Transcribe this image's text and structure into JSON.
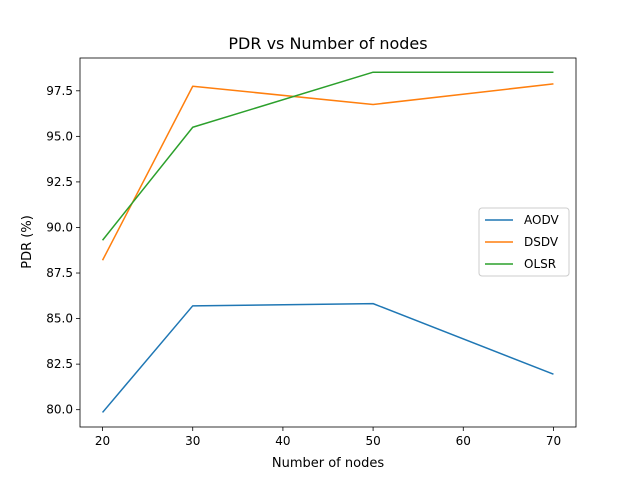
{
  "chart_data": {
    "type": "line",
    "title": "PDR vs Number of nodes",
    "xlabel": "Number of nodes",
    "ylabel": "PDR (%)",
    "x": [
      20,
      30,
      50,
      70
    ],
    "xlim": [
      17.5,
      72.5
    ],
    "ylim": [
      79.05,
      99.3
    ],
    "xticks": [
      20,
      30,
      40,
      50,
      60,
      70
    ],
    "yticks": [
      80.0,
      82.5,
      85.0,
      87.5,
      90.0,
      92.5,
      95.0,
      97.5
    ],
    "ytick_labels": [
      "80.0",
      "82.5",
      "85.0",
      "87.5",
      "90.0",
      "92.5",
      "95.0",
      "97.5"
    ],
    "grid": false,
    "legend_position": "center-right",
    "series": [
      {
        "name": "AODV",
        "color": "#1f77b4",
        "values": [
          79.85,
          85.7,
          85.82,
          81.95
        ]
      },
      {
        "name": "DSDV",
        "color": "#ff7f0e",
        "values": [
          88.2,
          97.75,
          96.75,
          97.88
        ]
      },
      {
        "name": "OLSR",
        "color": "#2ca02c",
        "values": [
          89.3,
          95.5,
          98.52,
          98.52
        ]
      }
    ]
  }
}
